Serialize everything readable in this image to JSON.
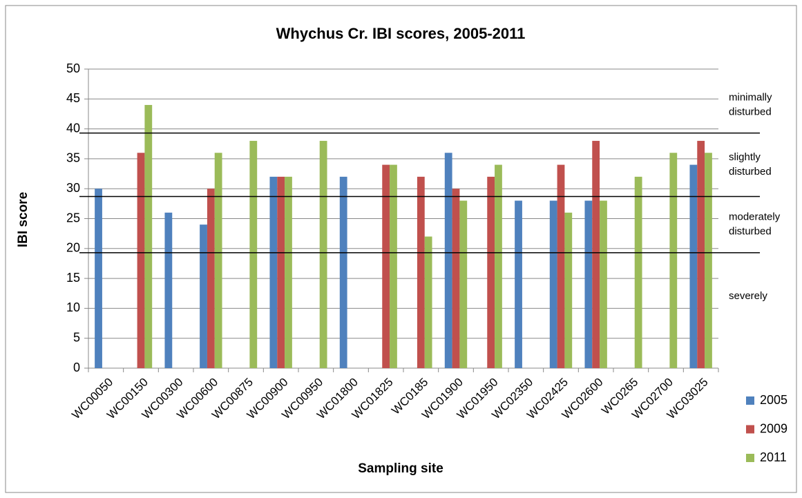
{
  "chart_data": {
    "type": "bar",
    "title": "Whychus Cr. IBI scores, 2005-2011",
    "x_label": "Sampling site",
    "y_label": "IBI score",
    "categories": [
      "WC00050",
      "WC00150",
      "WC00300",
      "WC00600",
      "WC00875",
      "WC00900",
      "WC00950",
      "WC01800",
      "WC01825",
      "WC0185",
      "WC01900",
      "WC01950",
      "WC02350",
      "WC02425",
      "WC02600",
      "WC0265",
      "WC02700",
      "WC03025"
    ],
    "series": [
      {
        "name": "2005",
        "color": "#4f81bd",
        "values": [
          30,
          null,
          26,
          24,
          null,
          32,
          null,
          32,
          null,
          null,
          36,
          null,
          28,
          28,
          28,
          null,
          null,
          34
        ]
      },
      {
        "name": "2009",
        "color": "#c0504d",
        "values": [
          null,
          36,
          null,
          30,
          null,
          32,
          null,
          null,
          34,
          32,
          30,
          32,
          null,
          34,
          38,
          null,
          null,
          38
        ]
      },
      {
        "name": "2011",
        "color": "#9bbb59",
        "values": [
          null,
          44,
          null,
          36,
          38,
          32,
          38,
          null,
          34,
          22,
          28,
          34,
          null,
          26,
          28,
          32,
          36,
          36
        ]
      }
    ],
    "ylim": [
      0,
      50
    ],
    "yticks": [
      0,
      5,
      10,
      15,
      20,
      25,
      30,
      35,
      40,
      45,
      50
    ],
    "grid": true,
    "legend": "right",
    "reference_lines": [
      39.3,
      28.7,
      19.3
    ],
    "annotations": [
      {
        "lines": [
          "minimally",
          "disturbed"
        ],
        "y": 44
      },
      {
        "lines": [
          "slightly",
          "disturbed"
        ],
        "y": 34
      },
      {
        "lines": [
          "moderately",
          "disturbed"
        ],
        "y": 24
      },
      {
        "lines": [
          "severely"
        ],
        "y": 12
      }
    ]
  }
}
